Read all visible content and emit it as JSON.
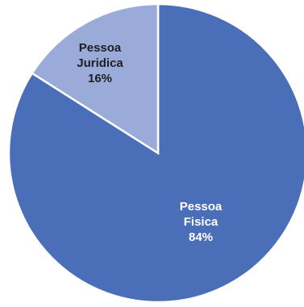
{
  "chart_data": {
    "type": "pie",
    "title": "",
    "start_angle_deg": 0,
    "direction": "clockwise",
    "slices": [
      {
        "label_lines": [
          "Pessoa",
          "Fisica",
          "84%"
        ],
        "value": 84,
        "color": "#4a6fb8",
        "text_color": "#ffffff"
      },
      {
        "label_lines": [
          "Pessoa",
          "Juridica",
          "16%"
        ],
        "value": 16,
        "color": "#9aabd9",
        "text_color": "#1f1f1f"
      }
    ]
  }
}
